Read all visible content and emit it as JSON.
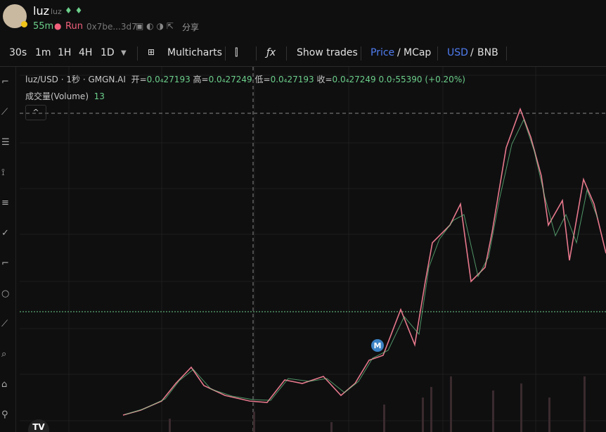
{
  "header": {
    "name": "luz",
    "ticker": "luz",
    "age": "55m",
    "tag": "Run",
    "address": "0x7be...3d7",
    "share": "分享"
  },
  "toolbar": {
    "intervals": [
      "30s",
      "1m",
      "1H",
      "4H",
      "1D"
    ],
    "multicharts": "Multicharts",
    "show_trades": "Show trades",
    "price": "Price",
    "slash": "/",
    "mcap": "MCap",
    "usd": "USD",
    "bnb": "BNB"
  },
  "legend": {
    "symbol": "luz/USD · 1秒 · GMGN.AI",
    "open_label": "开=",
    "open": "0.0₄27193",
    "high_label": "高=",
    "high": "0.0₄27249",
    "low_label": "低=",
    "low": "0.0₄27193",
    "close_label": "收=",
    "close": "0.0₄27249",
    "change": "0.0₇55390",
    "change_pct": "(+0.20%)",
    "volume_label": "成交量(Volume)",
    "volume": "13"
  },
  "marker": "M"
}
